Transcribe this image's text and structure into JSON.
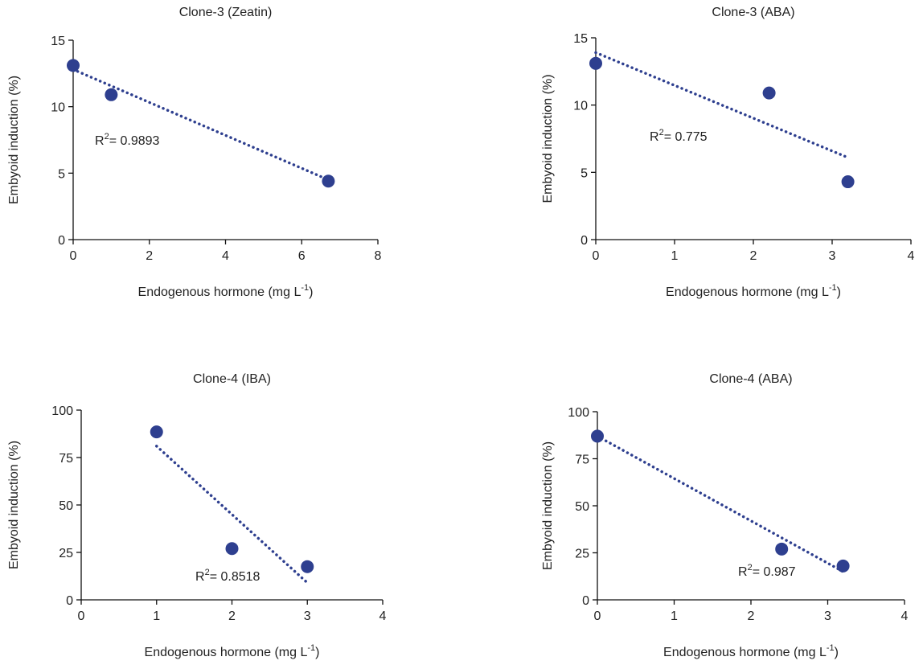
{
  "chart_data": [
    {
      "type": "scatter",
      "title": "Clone-3 (Zeatin)",
      "xlabel": [
        "Endogenous hormone (mg L",
        "-1",
        ")"
      ],
      "ylabel": "Embyoid induction (%)",
      "x": [
        0,
        1,
        6.7
      ],
      "values": [
        13.1,
        10.9,
        4.4
      ],
      "color": "#2e3f8f",
      "trendline": {
        "x": [
          0,
          6.7
        ],
        "y": [
          12.8,
          4.5
        ]
      },
      "annotation": [
        "R",
        "2",
        "= 0.9893"
      ],
      "xlim": [
        0,
        8
      ],
      "ylim": [
        0,
        15
      ],
      "xticks": [
        0,
        2,
        4,
        6,
        8
      ],
      "yticks": [
        0,
        5,
        10,
        15
      ]
    },
    {
      "type": "scatter",
      "title": "Clone-3 (ABA)",
      "xlabel": [
        "Endogenous hormone (mg L",
        "-1",
        ")"
      ],
      "ylabel": "Embyoid induction (%)",
      "x": [
        0,
        2.2,
        3.2
      ],
      "values": [
        13.1,
        10.9,
        4.3
      ],
      "color": "#2e3f8f",
      "trendline": {
        "x": [
          0,
          3.2
        ],
        "y": [
          13.9,
          6.1
        ]
      },
      "annotation": [
        "R",
        "2",
        "= 0.775"
      ],
      "xlim": [
        0,
        4
      ],
      "ylim": [
        0,
        15
      ],
      "xticks": [
        0,
        1,
        2,
        3,
        4
      ],
      "yticks": [
        0,
        5,
        10,
        15
      ]
    },
    {
      "type": "scatter",
      "title": "Clone-4 (IBA)",
      "xlabel": [
        "Endogenous hormone (mg L",
        "-1",
        ")"
      ],
      "ylabel": "Embyoid induction (%)",
      "x": [
        1,
        2,
        3
      ],
      "values": [
        88.5,
        27,
        17.5
      ],
      "color": "#2e3f8f",
      "trendline": {
        "x": [
          1,
          3
        ],
        "y": [
          81,
          9
        ]
      },
      "annotation": [
        "R",
        "2",
        "= 0.8518"
      ],
      "xlim": [
        0,
        4
      ],
      "ylim": [
        0,
        100
      ],
      "xticks": [
        0,
        1,
        2,
        3,
        4
      ],
      "yticks": [
        0,
        25,
        50,
        75,
        100
      ]
    },
    {
      "type": "scatter",
      "title": "Clone-4 (ABA)",
      "xlabel": [
        "Endogenous hormone (mg L",
        "-1",
        ")"
      ],
      "ylabel": "Embyoid induction (%)",
      "x": [
        0,
        2.4,
        3.2
      ],
      "values": [
        87,
        27,
        18
      ],
      "color": "#2e3f8f",
      "trendline": {
        "x": [
          0,
          3.2
        ],
        "y": [
          87,
          15
        ]
      },
      "annotation": [
        "R",
        "2",
        "= 0.987"
      ],
      "xlim": [
        0,
        4
      ],
      "ylim": [
        0,
        100
      ],
      "xticks": [
        0,
        1,
        2,
        3,
        4
      ],
      "yticks": [
        0,
        25,
        50,
        75,
        100
      ]
    }
  ]
}
